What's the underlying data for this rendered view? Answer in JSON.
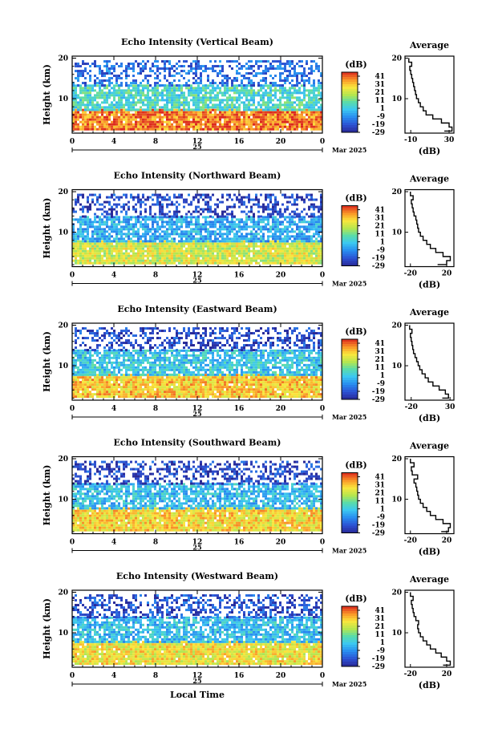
{
  "figure": {
    "xlabel": "Local Time",
    "ylabel": "Height (km)",
    "colorbar_label": "(dB)",
    "colorbar_ticks": [
      "41",
      "31",
      "21",
      "11",
      "1",
      "-9",
      "-19",
      "-29"
    ],
    "time_ticks": [
      "0",
      "4",
      "8",
      "12",
      "16",
      "20",
      "0"
    ],
    "height_ticks": [
      "20",
      "10"
    ],
    "date_day": "25",
    "date_suffix": "Mar 2025",
    "average_title": "Average",
    "average_xlabel": "(dB)"
  },
  "chart_data": [
    {
      "type": "heatmap",
      "title": "Echo Intensity (Vertical Beam)",
      "ylabel": "Height (km)",
      "x_range_hours": [
        0,
        24
      ],
      "y_range_km": [
        1.5,
        20.5
      ],
      "color_range_db": [
        -29,
        46
      ],
      "bands": [
        {
          "low_km": 2.5,
          "high_km": 7.5,
          "db": 38
        },
        {
          "low_km": 7.5,
          "high_km": 13.5,
          "db": 5
        },
        {
          "low_km": 13.5,
          "high_km": 19.5,
          "db": -15
        }
      ],
      "average_profile": {
        "title": "Average",
        "xlabel": "(dB)",
        "xticks": [
          "-10",
          "30"
        ],
        "xlim": [
          -16,
          35
        ],
        "heights_km": [
          2,
          3,
          4,
          5,
          6,
          7,
          8,
          9,
          10,
          11,
          12,
          13,
          14,
          15,
          16,
          17,
          18,
          19,
          20
        ],
        "values_db": [
          25,
          33,
          30,
          22,
          13,
          6,
          3,
          0,
          -2,
          -4,
          -5,
          -6,
          -7,
          -8,
          -9,
          -10,
          -11,
          -9,
          -12
        ]
      }
    },
    {
      "type": "heatmap",
      "title": "Echo Intensity (Northward Beam)",
      "ylabel": "Height (km)",
      "x_range_hours": [
        0,
        24
      ],
      "y_range_km": [
        1.5,
        20.5
      ],
      "color_range_db": [
        -29,
        46
      ],
      "bands": [
        {
          "low_km": 2.5,
          "high_km": 8,
          "db": 22
        },
        {
          "low_km": 8,
          "high_km": 14,
          "db": -5
        },
        {
          "low_km": 14,
          "high_km": 19.5,
          "db": -22
        }
      ],
      "average_profile": {
        "title": "Average",
        "xlabel": "(dB)",
        "xticks": [
          "-20",
          "20"
        ],
        "xlim": [
          -26,
          28
        ],
        "heights_km": [
          2,
          3,
          4,
          5,
          6,
          7,
          8,
          9,
          10,
          11,
          12,
          13,
          14,
          15,
          16,
          17,
          18,
          19,
          20
        ],
        "values_db": [
          10,
          20,
          24,
          16,
          8,
          2,
          -2,
          -6,
          -9,
          -11,
          -12,
          -13,
          -14,
          -16,
          -17,
          -18,
          -19,
          -17,
          -20
        ]
      }
    },
    {
      "type": "heatmap",
      "title": "Echo Intensity (Eastward Beam)",
      "ylabel": "Height (km)",
      "x_range_hours": [
        0,
        24
      ],
      "y_range_km": [
        1.5,
        20.5
      ],
      "color_range_db": [
        -29,
        46
      ],
      "bands": [
        {
          "low_km": 2.5,
          "high_km": 8,
          "db": 30
        },
        {
          "low_km": 8,
          "high_km": 14,
          "db": 0
        },
        {
          "low_km": 14,
          "high_km": 19.5,
          "db": -22
        }
      ],
      "average_profile": {
        "title": "Average",
        "xlabel": "(dB)",
        "xticks": [
          "-20",
          "30"
        ],
        "xlim": [
          -28,
          35
        ],
        "heights_km": [
          2,
          3,
          4,
          5,
          6,
          7,
          8,
          9,
          10,
          11,
          12,
          13,
          14,
          15,
          16,
          17,
          18,
          19,
          20
        ],
        "values_db": [
          20,
          28,
          24,
          16,
          8,
          2,
          -2,
          -6,
          -9,
          -11,
          -13,
          -15,
          -17,
          -18,
          -19,
          -20,
          -21,
          -19,
          -22
        ]
      }
    },
    {
      "type": "heatmap",
      "title": "Echo Intensity (Southward Beam)",
      "ylabel": "Height (km)",
      "x_range_hours": [
        0,
        24
      ],
      "y_range_km": [
        1.5,
        20.5
      ],
      "color_range_db": [
        -29,
        46
      ],
      "bands": [
        {
          "low_km": 2.5,
          "high_km": 8,
          "db": 28
        },
        {
          "low_km": 8,
          "high_km": 14,
          "db": -2
        },
        {
          "low_km": 14,
          "high_km": 19.5,
          "db": -22
        }
      ],
      "average_profile": {
        "title": "Average",
        "xlabel": "(dB)",
        "xticks": [
          "-20",
          "20"
        ],
        "xlim": [
          -26,
          28
        ],
        "heights_km": [
          2,
          3,
          4,
          5,
          6,
          7,
          8,
          9,
          10,
          11,
          12,
          13,
          14,
          15,
          16,
          17,
          18,
          19,
          20
        ],
        "values_db": [
          14,
          22,
          24,
          16,
          8,
          2,
          -2,
          -6,
          -9,
          -11,
          -12,
          -13,
          -14,
          -16,
          -12,
          -18,
          -19,
          -16,
          -20
        ]
      }
    },
    {
      "type": "heatmap",
      "title": "Echo Intensity (Westward Beam)",
      "ylabel": "Height (km)",
      "x_range_hours": [
        0,
        24
      ],
      "y_range_km": [
        1.5,
        20.5
      ],
      "color_range_db": [
        -29,
        46
      ],
      "bands": [
        {
          "low_km": 2.5,
          "high_km": 8,
          "db": 26
        },
        {
          "low_km": 8,
          "high_km": 14,
          "db": -2
        },
        {
          "low_km": 14,
          "high_km": 19.5,
          "db": -20
        }
      ],
      "average_profile": {
        "title": "Average",
        "xlabel": "(dB)",
        "xticks": [
          "-20",
          "20"
        ],
        "xlim": [
          -26,
          28
        ],
        "heights_km": [
          2,
          3,
          4,
          5,
          6,
          7,
          8,
          9,
          10,
          11,
          12,
          13,
          14,
          15,
          16,
          17,
          18,
          19,
          20
        ],
        "values_db": [
          16,
          24,
          20,
          14,
          8,
          2,
          -2,
          -6,
          -9,
          -11,
          -12,
          -11,
          -14,
          -16,
          -17,
          -18,
          -19,
          -17,
          -20
        ]
      }
    }
  ]
}
